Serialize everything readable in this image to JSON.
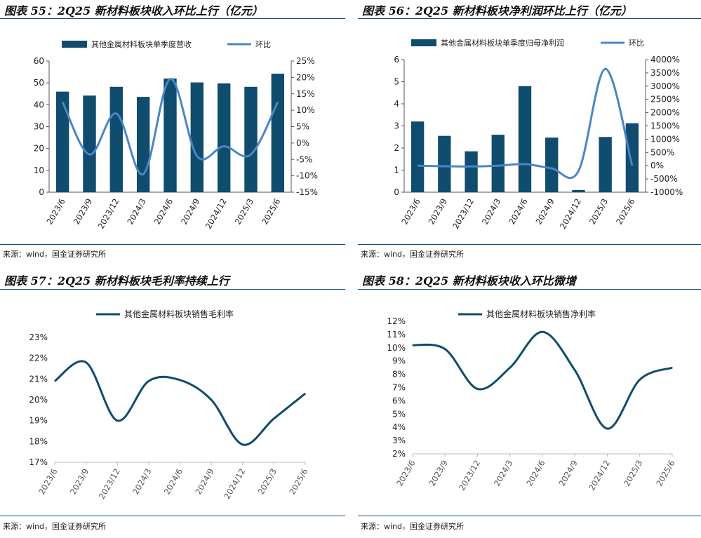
{
  "colors": {
    "bar": "#0f4c6e",
    "ratio_line": "#4a86c5",
    "margin_line": "#0f4c6e",
    "axis": "#555555"
  },
  "source_text": "来源：wind，国金证券研究所",
  "panels": [
    {
      "title": "图表 55：2Q25 新材料板块收入环比上行（亿元）",
      "source": "来源：wind，国金证券研究所"
    },
    {
      "title": "图表 56：2Q25 新材料板块净利润环比上行（亿元）",
      "source": "来源：wind，国金证券研究所"
    },
    {
      "title": "图表 57：2Q25 新材料板块毛利率持续上行",
      "source": "来源：wind，国金证券研究所"
    },
    {
      "title": "图表 58：2Q25 新材料板块收入环比微增",
      "source": "来源：wind，国金证券研究所"
    }
  ],
  "chart_data": [
    {
      "type": "bar",
      "title": "图表 55：2Q25 新材料板块收入环比上行（亿元）",
      "categories": [
        "2023/6",
        "2023/9",
        "2023/12",
        "2024/3",
        "2024/6",
        "2024/9",
        "2024/12",
        "2025/3",
        "2025/6"
      ],
      "series": [
        {
          "name": "其他金属材料板块单季度营收",
          "kind": "bar",
          "axis": "left",
          "values": [
            46,
            44.2,
            48.2,
            43.6,
            52,
            50.2,
            49.8,
            48.2,
            54.2
          ]
        },
        {
          "name": "环比",
          "kind": "line",
          "axis": "right",
          "values": [
            12.5,
            -3.5,
            9,
            -9.5,
            19.5,
            -4,
            -1,
            -3.5,
            12.5
          ]
        }
      ],
      "ylim": [
        0,
        60
      ],
      "yticks": [
        "0",
        "10",
        "20",
        "30",
        "40",
        "50",
        "60"
      ],
      "y2lim": [
        -15,
        25
      ],
      "y2ticks": [
        "-15%",
        "-10%",
        "-5%",
        "0%",
        "5%",
        "10%",
        "15%",
        "20%",
        "25%"
      ],
      "legend": "top"
    },
    {
      "type": "bar",
      "title": "图表 56：2Q25 新材料板块净利润环比上行（亿元）",
      "categories": [
        "2023/6",
        "2023/9",
        "2023/12",
        "2024/3",
        "2024/6",
        "2024/9",
        "2024/12",
        "2025/3",
        "2025/6"
      ],
      "series": [
        {
          "name": "其他金属材料板块单季度归母净利润",
          "kind": "bar",
          "axis": "left",
          "values": [
            3.2,
            2.55,
            1.85,
            2.6,
            4.8,
            2.47,
            0.1,
            2.5,
            3.12
          ]
        },
        {
          "name": "环比",
          "kind": "line",
          "axis": "right",
          "values": [
            0,
            -20,
            -30,
            0,
            60,
            -100,
            -200,
            3650,
            0
          ]
        }
      ],
      "ylim": [
        0,
        6
      ],
      "yticks": [
        "0",
        "1",
        "2",
        "3",
        "4",
        "5",
        "6"
      ],
      "y2lim": [
        -1000,
        4000
      ],
      "y2ticks": [
        "-1000%",
        "-500%",
        "0%",
        "500%",
        "1000%",
        "1500%",
        "2000%",
        "2500%",
        "3000%",
        "3500%",
        "4000%"
      ],
      "legend": "top"
    },
    {
      "type": "line",
      "title": "图表 57：2Q25 新材料板块毛利率持续上行",
      "categories": [
        "2023/6",
        "2023/9",
        "2023/12",
        "2024/3",
        "2024/6",
        "2024/9",
        "2024/12",
        "2025/3",
        "2025/6"
      ],
      "series": [
        {
          "name": "其他金属材料板块销售毛利率",
          "values": [
            20.9,
            21.8,
            19.0,
            20.9,
            20.95,
            20.0,
            17.85,
            19.1,
            20.3
          ]
        }
      ],
      "ylim": [
        17,
        23
      ],
      "yticks": [
        "17%",
        "18%",
        "19%",
        "20%",
        "21%",
        "22%",
        "23%"
      ],
      "legend": "top"
    },
    {
      "type": "line",
      "title": "图表 58：2Q25 新材料板块收入环比微增",
      "categories": [
        "2023/6",
        "2023/9",
        "2023/12",
        "2024/3",
        "2024/6",
        "2024/9",
        "2024/12",
        "2025/3",
        "2025/6"
      ],
      "series": [
        {
          "name": "其他金属材料板块销售净利率",
          "values": [
            10.2,
            9.9,
            6.9,
            8.5,
            11.2,
            8.3,
            3.9,
            7.6,
            8.5
          ]
        }
      ],
      "ylim": [
        2,
        12
      ],
      "yticks": [
        "2%",
        "3%",
        "4%",
        "5%",
        "6%",
        "7%",
        "8%",
        "9%",
        "10%",
        "11%",
        "12%"
      ],
      "legend": "top"
    }
  ]
}
